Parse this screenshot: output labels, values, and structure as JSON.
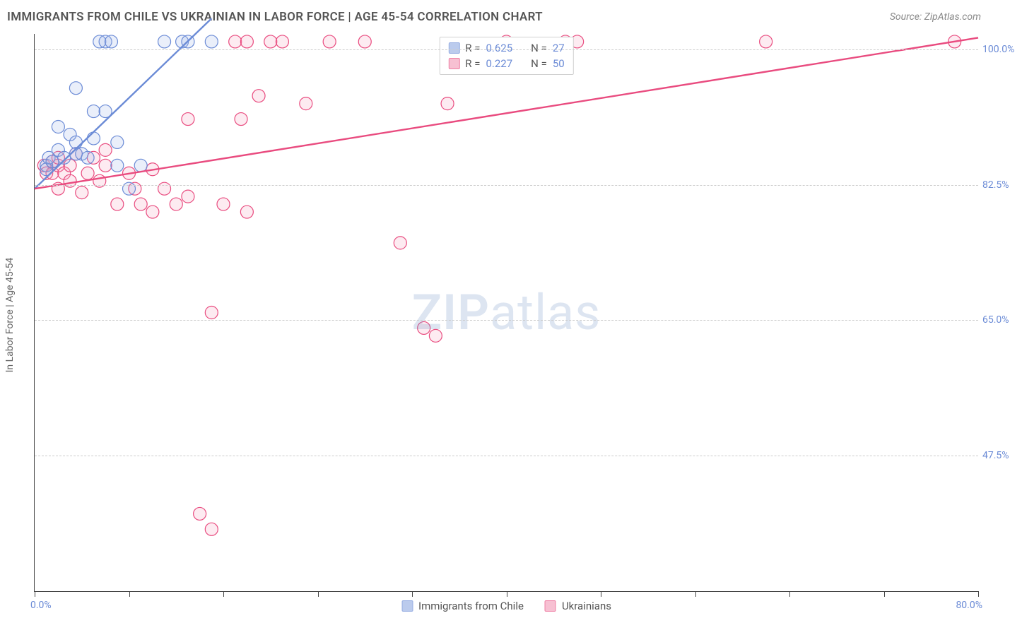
{
  "title": "IMMIGRANTS FROM CHILE VS UKRAINIAN IN LABOR FORCE | AGE 45-54 CORRELATION CHART",
  "source": "Source: ZipAtlas.com",
  "watermark": "ZIPatlas",
  "chart": {
    "type": "scatter",
    "xlabel": "",
    "ylabel": "In Labor Force | Age 45-54",
    "xlim": [
      0.0,
      80.0
    ],
    "ylim": [
      30.0,
      102.0
    ],
    "xtick_positions": [
      0.0,
      8.0,
      16.0,
      24.0,
      32.0,
      40.0,
      48.0,
      56.0,
      64.0,
      72.0,
      80.0
    ],
    "xlim_labels": {
      "min": "0.0%",
      "max": "80.0%"
    },
    "ytick_positions": [
      47.5,
      65.0,
      82.5,
      100.0
    ],
    "ytick_labels": [
      "47.5%",
      "65.0%",
      "82.5%",
      "100.0%"
    ],
    "background_color": "#ffffff",
    "grid_color": "#cccccc",
    "axis_color": "#444444",
    "label_color": "#666666",
    "tick_label_color": "#6b8bd6",
    "marker_radius": 9,
    "marker_stroke_width": 1.2,
    "marker_fill_opacity": 0.22,
    "trend_line_width": 2.4,
    "series": [
      {
        "name": "Immigrants from Chile",
        "color": "#6b8bd6",
        "fill": "#9fb6e6",
        "R": "0.625",
        "N": "27",
        "points": [
          [
            1.0,
            85.0
          ],
          [
            1.2,
            86.0
          ],
          [
            1.0,
            84.5
          ],
          [
            1.5,
            85.5
          ],
          [
            2.0,
            87.0
          ],
          [
            2.0,
            90.0
          ],
          [
            2.5,
            86.0
          ],
          [
            3.0,
            89.0
          ],
          [
            3.5,
            88.0
          ],
          [
            3.5,
            86.5
          ],
          [
            3.5,
            95.0
          ],
          [
            4.0,
            86.5
          ],
          [
            4.5,
            86.0
          ],
          [
            5.0,
            88.5
          ],
          [
            5.0,
            92.0
          ],
          [
            5.5,
            101.0
          ],
          [
            6.0,
            101.0
          ],
          [
            6.5,
            101.0
          ],
          [
            6.0,
            92.0
          ],
          [
            7.0,
            88.0
          ],
          [
            7.0,
            85.0
          ],
          [
            8.0,
            82.0
          ],
          [
            9.0,
            85.0
          ],
          [
            11.0,
            101.0
          ],
          [
            12.5,
            101.0
          ],
          [
            13.0,
            101.0
          ],
          [
            15.0,
            101.0
          ]
        ],
        "trend": {
          "x1": 0.0,
          "y1": 82.0,
          "x2": 15.0,
          "y2": 104.0
        }
      },
      {
        "name": "Ukrainians",
        "color": "#e94b7f",
        "fill": "#f4a6c0",
        "R": "0.227",
        "N": "50",
        "points": [
          [
            0.8,
            85.0
          ],
          [
            1.0,
            84.0
          ],
          [
            1.5,
            85.5
          ],
          [
            1.5,
            84.0
          ],
          [
            2.0,
            85.0
          ],
          [
            2.0,
            86.0
          ],
          [
            2.5,
            84.0
          ],
          [
            3.0,
            85.0
          ],
          [
            3.0,
            83.0
          ],
          [
            4.0,
            81.5
          ],
          [
            4.5,
            84.0
          ],
          [
            5.0,
            86.0
          ],
          [
            5.5,
            83.0
          ],
          [
            6.0,
            85.0
          ],
          [
            7.0,
            80.0
          ],
          [
            8.0,
            84.0
          ],
          [
            8.5,
            82.0
          ],
          [
            9.0,
            80.0
          ],
          [
            10.0,
            79.0
          ],
          [
            10.0,
            84.5
          ],
          [
            11.0,
            82.0
          ],
          [
            12.0,
            80.0
          ],
          [
            13.0,
            81.0
          ],
          [
            13.0,
            91.0
          ],
          [
            14.0,
            40.0
          ],
          [
            15.0,
            38.0
          ],
          [
            15.0,
            66.0
          ],
          [
            16.0,
            80.0
          ],
          [
            17.0,
            101.0
          ],
          [
            17.5,
            91.0
          ],
          [
            18.0,
            79.0
          ],
          [
            18.0,
            101.0
          ],
          [
            19.0,
            94.0
          ],
          [
            20.0,
            101.0
          ],
          [
            21.0,
            101.0
          ],
          [
            23.0,
            93.0
          ],
          [
            25.0,
            101.0
          ],
          [
            28.0,
            101.0
          ],
          [
            31.0,
            75.0
          ],
          [
            33.0,
            64.0
          ],
          [
            34.0,
            63.0
          ],
          [
            35.0,
            93.0
          ],
          [
            40.0,
            101.0
          ],
          [
            45.0,
            101.0
          ],
          [
            46.0,
            101.0
          ],
          [
            62.0,
            101.0
          ],
          [
            78.0,
            101.0
          ],
          [
            2.0,
            82.0
          ],
          [
            3.5,
            86.5
          ],
          [
            6.0,
            87.0
          ]
        ],
        "trend": {
          "x1": 0.0,
          "y1": 82.0,
          "x2": 80.0,
          "y2": 101.5
        }
      }
    ],
    "legend_top": {
      "rows": [
        {
          "series_idx": 0,
          "r_label": "R =",
          "n_label": "N ="
        },
        {
          "series_idx": 1,
          "r_label": "R =",
          "n_label": "N ="
        }
      ]
    }
  }
}
